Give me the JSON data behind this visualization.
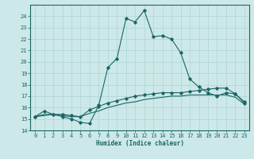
{
  "xlabel": "Humidex (Indice chaleur)",
  "xlim": [
    -0.5,
    23.5
  ],
  "ylim": [
    14,
    25
  ],
  "yticks": [
    14,
    15,
    16,
    17,
    18,
    19,
    20,
    21,
    22,
    23,
    24
  ],
  "xticks": [
    0,
    1,
    2,
    3,
    4,
    5,
    6,
    7,
    8,
    9,
    10,
    11,
    12,
    13,
    14,
    15,
    16,
    17,
    18,
    19,
    20,
    21,
    22,
    23
  ],
  "background_color": "#cde8e8",
  "line_color": "#1a6666",
  "grid_color": "#aed4d4",
  "lines": [
    {
      "x": [
        0,
        1,
        2,
        3,
        4,
        5,
        6,
        7,
        8,
        9,
        10,
        11,
        12,
        13,
        14,
        15,
        16,
        17,
        18,
        19,
        20,
        21,
        22,
        23
      ],
      "y": [
        15.2,
        15.7,
        15.4,
        15.2,
        15.0,
        14.7,
        14.6,
        16.2,
        19.5,
        20.3,
        23.8,
        23.5,
        24.5,
        22.2,
        22.3,
        22.0,
        20.8,
        18.5,
        17.8,
        17.3,
        17.0,
        17.3,
        17.2,
        16.5
      ],
      "has_markers": true,
      "linestyle": "-"
    },
    {
      "x": [
        0,
        2,
        3,
        4,
        5,
        6,
        7,
        8,
        9,
        10,
        11,
        12,
        13,
        14,
        15,
        16,
        17,
        18,
        19,
        20,
        21,
        22,
        23
      ],
      "y": [
        15.2,
        15.4,
        15.4,
        15.3,
        15.2,
        15.8,
        16.1,
        16.4,
        16.6,
        16.8,
        17.0,
        17.1,
        17.2,
        17.3,
        17.3,
        17.3,
        17.4,
        17.5,
        17.6,
        17.7,
        17.7,
        17.2,
        16.4
      ],
      "has_markers": true,
      "linestyle": "-"
    },
    {
      "x": [
        0,
        1,
        2,
        3,
        4,
        5,
        6,
        7,
        8,
        9,
        10,
        11,
        12,
        13,
        14,
        15,
        16,
        17,
        18,
        19,
        20,
        21,
        22,
        23
      ],
      "y": [
        15.2,
        15.4,
        15.4,
        15.3,
        15.2,
        15.2,
        15.5,
        15.7,
        16.0,
        16.2,
        16.4,
        16.5,
        16.7,
        16.8,
        16.9,
        17.0,
        17.0,
        17.1,
        17.1,
        17.1,
        17.1,
        17.1,
        16.9,
        16.3
      ],
      "has_markers": false,
      "linestyle": "-"
    }
  ]
}
